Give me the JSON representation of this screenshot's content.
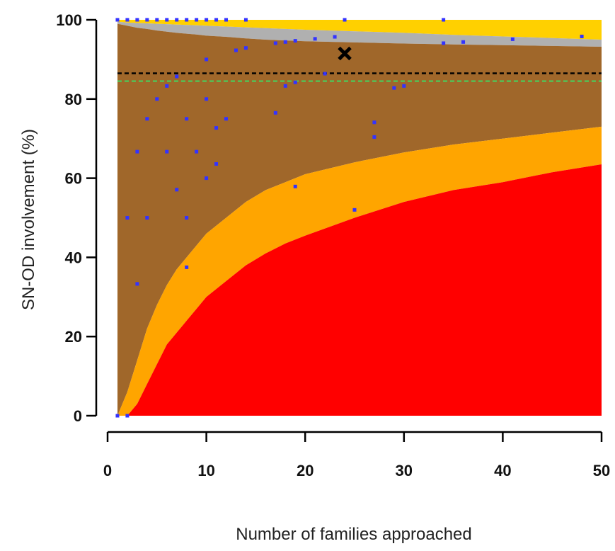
{
  "chart_data": {
    "type": "scatter",
    "title": "",
    "xlabel": "Number of families approached",
    "ylabel": "SN-OD involvement (%)",
    "xlim": [
      0,
      50
    ],
    "ylim": [
      0,
      100
    ],
    "xticks": [
      0,
      10,
      20,
      30,
      40,
      50
    ],
    "yticks": [
      0,
      20,
      40,
      60,
      80,
      100
    ],
    "grid": false,
    "legend": "none",
    "colors": {
      "upper_band": "#FFD000",
      "grey_band": "#B0B0B0",
      "brown_band": "#A0672A",
      "orange_band": "#FFA500",
      "red_band": "#FF0000",
      "points": "#3333FF",
      "marker": "#000000",
      "mean_line": "#000000",
      "target_line": "#55C055"
    },
    "reference_lines": [
      {
        "y": 86.5,
        "style": "dashed",
        "color": "#000000"
      },
      {
        "y": 84.5,
        "style": "dashed",
        "color": "#55C055"
      }
    ],
    "highlight_point": {
      "x": 24,
      "y": 91.5,
      "marker": "x"
    },
    "bands": {
      "x": [
        1,
        2,
        3,
        4,
        5,
        6,
        7,
        8,
        9,
        10,
        12,
        14,
        16,
        18,
        20,
        25,
        30,
        35,
        40,
        45,
        50
      ],
      "red_upper": [
        0,
        0,
        3,
        8,
        13,
        18,
        21,
        24,
        27,
        30,
        34,
        38,
        41,
        43.5,
        45.5,
        50,
        54,
        57,
        59,
        61.5,
        63.5
      ],
      "orange_upper": [
        0,
        6,
        14,
        22,
        28,
        33,
        37,
        40,
        43,
        46,
        50,
        54,
        57,
        59,
        61,
        64,
        66.5,
        68.5,
        70,
        71.5,
        73
      ],
      "brown_upper": [
        99,
        98.5,
        98,
        97.7,
        97.3,
        97,
        96.7,
        96.5,
        96.3,
        96,
        95.7,
        95.3,
        95,
        94.8,
        94.6,
        94.3,
        94,
        93.8,
        93.6,
        93.4,
        93.2
      ],
      "grey_upper": [
        99.5,
        99.3,
        99.2,
        99.1,
        99,
        98.9,
        98.8,
        98.7,
        98.6,
        98.5,
        98.3,
        98.1,
        97.9,
        97.7,
        97.5,
        97.1,
        96.7,
        96.2,
        95.8,
        95.4,
        95
      ],
      "yellow_upper": [
        100,
        100,
        100,
        100,
        100,
        100,
        100,
        100,
        100,
        100,
        100,
        100,
        100,
        100,
        100,
        100,
        100,
        100,
        100,
        100,
        100
      ]
    },
    "points": [
      {
        "x": 1,
        "y": 100
      },
      {
        "x": 1,
        "y": 0
      },
      {
        "x": 2,
        "y": 0
      },
      {
        "x": 2,
        "y": 100
      },
      {
        "x": 3,
        "y": 100
      },
      {
        "x": 4,
        "y": 100
      },
      {
        "x": 5,
        "y": 100
      },
      {
        "x": 6,
        "y": 100
      },
      {
        "x": 7,
        "y": 100
      },
      {
        "x": 8,
        "y": 100
      },
      {
        "x": 9,
        "y": 100
      },
      {
        "x": 10,
        "y": 100
      },
      {
        "x": 11,
        "y": 100
      },
      {
        "x": 12,
        "y": 100
      },
      {
        "x": 14,
        "y": 100
      },
      {
        "x": 24,
        "y": 100
      },
      {
        "x": 34,
        "y": 100
      },
      {
        "x": 2,
        "y": 50
      },
      {
        "x": 4,
        "y": 50
      },
      {
        "x": 3,
        "y": 33.3
      },
      {
        "x": 3,
        "y": 66.7
      },
      {
        "x": 4,
        "y": 75
      },
      {
        "x": 5,
        "y": 80
      },
      {
        "x": 6,
        "y": 83.3
      },
      {
        "x": 6,
        "y": 66.7
      },
      {
        "x": 7,
        "y": 85.7
      },
      {
        "x": 7,
        "y": 57.1
      },
      {
        "x": 8,
        "y": 75
      },
      {
        "x": 8,
        "y": 50
      },
      {
        "x": 8,
        "y": 37.5
      },
      {
        "x": 9,
        "y": 66.7
      },
      {
        "x": 10,
        "y": 90
      },
      {
        "x": 10,
        "y": 80
      },
      {
        "x": 10,
        "y": 60
      },
      {
        "x": 11,
        "y": 72.7
      },
      {
        "x": 11,
        "y": 63.6
      },
      {
        "x": 12,
        "y": 75
      },
      {
        "x": 13,
        "y": 92.3
      },
      {
        "x": 14,
        "y": 92.9
      },
      {
        "x": 17,
        "y": 94.1
      },
      {
        "x": 17,
        "y": 76.5
      },
      {
        "x": 18,
        "y": 94.4
      },
      {
        "x": 18,
        "y": 83.3
      },
      {
        "x": 19,
        "y": 94.7
      },
      {
        "x": 19,
        "y": 84.2
      },
      {
        "x": 19,
        "y": 57.9
      },
      {
        "x": 21,
        "y": 95.2
      },
      {
        "x": 22,
        "y": 86.4
      },
      {
        "x": 23,
        "y": 95.7
      },
      {
        "x": 25,
        "y": 52
      },
      {
        "x": 27,
        "y": 74.1
      },
      {
        "x": 27,
        "y": 70.4
      },
      {
        "x": 29,
        "y": 82.8
      },
      {
        "x": 30,
        "y": 83.3
      },
      {
        "x": 34,
        "y": 94.1
      },
      {
        "x": 36,
        "y": 94.4
      },
      {
        "x": 41,
        "y": 95.1
      },
      {
        "x": 48,
        "y": 95.8
      }
    ]
  }
}
